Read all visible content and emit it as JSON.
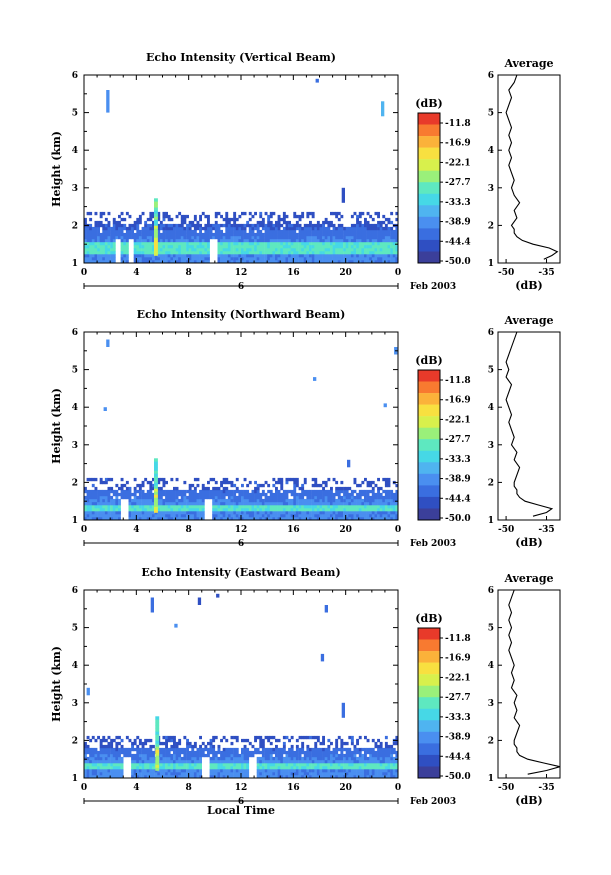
{
  "chart_data": [
    {
      "type": "heatmap",
      "title": "Echo Intensity (Vertical Beam)",
      "ylabel": "Height (km)",
      "xlabel": "",
      "xlim": [
        0,
        24
      ],
      "ylim": [
        1,
        6
      ],
      "xticks": [
        "0",
        "4",
        "8",
        "12",
        "16",
        "20",
        "0"
      ],
      "yticks": [
        "1",
        "2",
        "3",
        "4",
        "5",
        "6"
      ],
      "date_label": "Feb 2003",
      "day_label": "6",
      "colorbar": {
        "unit": "(dB)",
        "levels": [
          "-11.8",
          "-16.9",
          "-22.1",
          "-27.7",
          "-33.3",
          "-38.9",
          "-44.4",
          "-50.0"
        ]
      },
      "average_profile": {
        "title": "Average",
        "xlabel": "(dB)",
        "xticks": [
          "-50",
          "-35"
        ],
        "xlim": [
          -53,
          -30
        ],
        "ylim": [
          1,
          6
        ],
        "height_km": [
          1.1,
          1.2,
          1.3,
          1.4,
          1.5,
          1.6,
          1.7,
          1.8,
          1.9,
          2.0,
          2.2,
          2.4,
          2.6,
          2.8,
          3.0,
          3.2,
          3.4,
          3.6,
          3.8,
          4.0,
          4.2,
          4.4,
          4.6,
          4.8,
          5.0,
          5.2,
          5.4,
          5.6,
          5.8,
          6.0
        ],
        "db": [
          -36,
          -33,
          -31,
          -34,
          -40,
          -44,
          -46,
          -47,
          -47,
          -48,
          -46,
          -47,
          -45,
          -47,
          -48,
          -47,
          -48,
          -49,
          -48,
          -49,
          -48,
          -49,
          -48,
          -49,
          -50,
          -49,
          -48,
          -49,
          -47,
          -46
        ]
      },
      "field": {
        "layer_top_km": 2.0,
        "layer_core_km": [
          1.2,
          1.5
        ],
        "plume_hour": 5.5,
        "plume_top_km": 2.7,
        "gaps_hours": [
          2.5,
          3.5,
          9.8
        ],
        "speckles": [
          [
            1.8,
            5.0,
            5.6
          ],
          [
            17.8,
            5.8,
            5.9
          ],
          [
            19.8,
            2.6,
            3.0
          ],
          [
            22.8,
            4.9,
            5.3
          ]
        ]
      }
    },
    {
      "type": "heatmap",
      "title": "Echo Intensity (Northward Beam)",
      "ylabel": "Height (km)",
      "xlabel": "",
      "xlim": [
        0,
        24
      ],
      "ylim": [
        1,
        6
      ],
      "xticks": [
        "0",
        "4",
        "8",
        "12",
        "16",
        "20",
        "0"
      ],
      "yticks": [
        "1",
        "2",
        "3",
        "4",
        "5",
        "6"
      ],
      "date_label": "Feb 2003",
      "day_label": "6",
      "colorbar": {
        "unit": "(dB)",
        "levels": [
          "-11.8",
          "-16.9",
          "-22.1",
          "-27.7",
          "-33.3",
          "-38.9",
          "-44.4",
          "-50.0"
        ]
      },
      "average_profile": {
        "title": "Average",
        "xlabel": "(dB)",
        "xticks": [
          "-50",
          "-35"
        ],
        "xlim": [
          -53,
          -30
        ],
        "ylim": [
          1,
          6
        ],
        "height_km": [
          1.1,
          1.2,
          1.3,
          1.4,
          1.5,
          1.6,
          1.7,
          1.8,
          1.9,
          2.0,
          2.2,
          2.4,
          2.6,
          2.8,
          3.0,
          3.2,
          3.4,
          3.6,
          3.8,
          4.0,
          4.2,
          4.4,
          4.6,
          4.8,
          5.0,
          5.2,
          5.4,
          5.6,
          5.8,
          6.0
        ],
        "db": [
          -40,
          -35,
          -33,
          -38,
          -43,
          -45,
          -46,
          -46,
          -47,
          -47,
          -46,
          -45,
          -47,
          -46,
          -48,
          -47,
          -48,
          -49,
          -48,
          -49,
          -50,
          -49,
          -48,
          -50,
          -49,
          -50,
          -49,
          -48,
          -47,
          -46
        ]
      },
      "field": {
        "layer_top_km": 1.8,
        "layer_core_km": [
          1.2,
          1.4
        ],
        "plume_hour": 5.5,
        "plume_top_km": 2.6,
        "gaps_hours": [
          3.0,
          9.4
        ],
        "speckles": [
          [
            1.8,
            5.6,
            5.8
          ],
          [
            1.6,
            3.9,
            4.0
          ],
          [
            17.6,
            4.7,
            4.8
          ],
          [
            20.2,
            2.4,
            2.6
          ],
          [
            23.0,
            4.0,
            4.1
          ],
          [
            23.8,
            5.4,
            5.6
          ]
        ]
      }
    },
    {
      "type": "heatmap",
      "title": "Echo Intensity (Eastward Beam)",
      "ylabel": "Height (km)",
      "xlabel": "Local Time",
      "xlim": [
        0,
        24
      ],
      "ylim": [
        1,
        6
      ],
      "xticks": [
        "0",
        "4",
        "8",
        "12",
        "16",
        "20",
        "0"
      ],
      "yticks": [
        "1",
        "2",
        "3",
        "4",
        "5",
        "6"
      ],
      "date_label": "Feb 2003",
      "day_label": "6",
      "colorbar": {
        "unit": "(dB)",
        "levels": [
          "-11.8",
          "-16.9",
          "-22.1",
          "-27.7",
          "-33.3",
          "-38.9",
          "-44.4",
          "-50.0"
        ]
      },
      "average_profile": {
        "title": "Average",
        "xlabel": "(dB)",
        "xticks": [
          "-50",
          "-35"
        ],
        "xlim": [
          -53,
          -30
        ],
        "ylim": [
          1,
          6
        ],
        "height_km": [
          1.1,
          1.2,
          1.3,
          1.4,
          1.5,
          1.6,
          1.7,
          1.8,
          1.9,
          2.0,
          2.2,
          2.4,
          2.6,
          2.8,
          3.0,
          3.2,
          3.4,
          3.6,
          3.8,
          4.0,
          4.2,
          4.4,
          4.6,
          4.8,
          5.0,
          5.2,
          5.4,
          5.6,
          5.8,
          6.0
        ],
        "db": [
          -42,
          -35,
          -30,
          -36,
          -42,
          -45,
          -46,
          -46,
          -47,
          -47,
          -46,
          -45,
          -47,
          -46,
          -47,
          -46,
          -48,
          -47,
          -48,
          -47,
          -48,
          -49,
          -48,
          -49,
          -48,
          -49,
          -48,
          -49,
          -48,
          -47
        ]
      },
      "field": {
        "layer_top_km": 1.8,
        "layer_core_km": [
          1.2,
          1.4
        ],
        "plume_hour": 5.6,
        "plume_top_km": 2.6,
        "gaps_hours": [
          3.2,
          9.2,
          12.8
        ],
        "speckles": [
          [
            5.2,
            5.4,
            5.8
          ],
          [
            8.8,
            5.6,
            5.8
          ],
          [
            7.0,
            5.0,
            5.1
          ],
          [
            10.2,
            5.8,
            5.9
          ],
          [
            18.5,
            5.4,
            5.6
          ],
          [
            18.2,
            4.1,
            4.3
          ],
          [
            19.8,
            2.6,
            3.0
          ],
          [
            0.3,
            3.2,
            3.4
          ]
        ]
      }
    }
  ]
}
